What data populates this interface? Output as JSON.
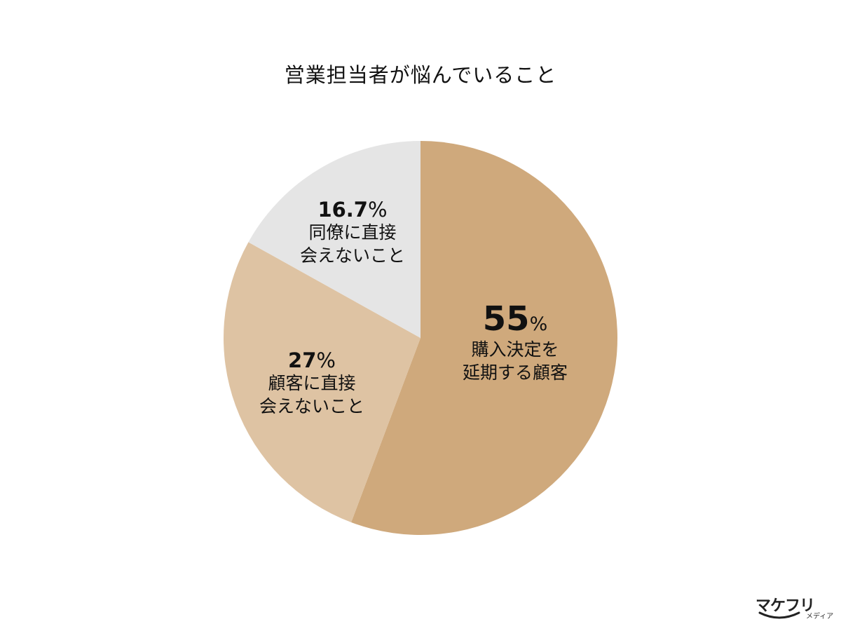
{
  "chart_data": {
    "type": "pie",
    "title": "営業担当者が悩んでいること",
    "slices": [
      {
        "value": 55,
        "value_text": "55",
        "unit": "%",
        "label": "購入決定を\n延期する顧客",
        "color": "#CFA97C"
      },
      {
        "value": 27,
        "value_text": "27",
        "unit": "%",
        "label": "顧客に直接\n会えないこと",
        "color": "#DEC3A3"
      },
      {
        "value": 16.7,
        "value_text": "16.7",
        "unit": "%",
        "label": "同僚に直接\n会えないこと",
        "color": "#E5E5E5"
      }
    ],
    "start_angle": "12 o'clock",
    "direction": "clockwise"
  },
  "logo": {
    "main": "マケフリ",
    "sub": "メディア"
  }
}
